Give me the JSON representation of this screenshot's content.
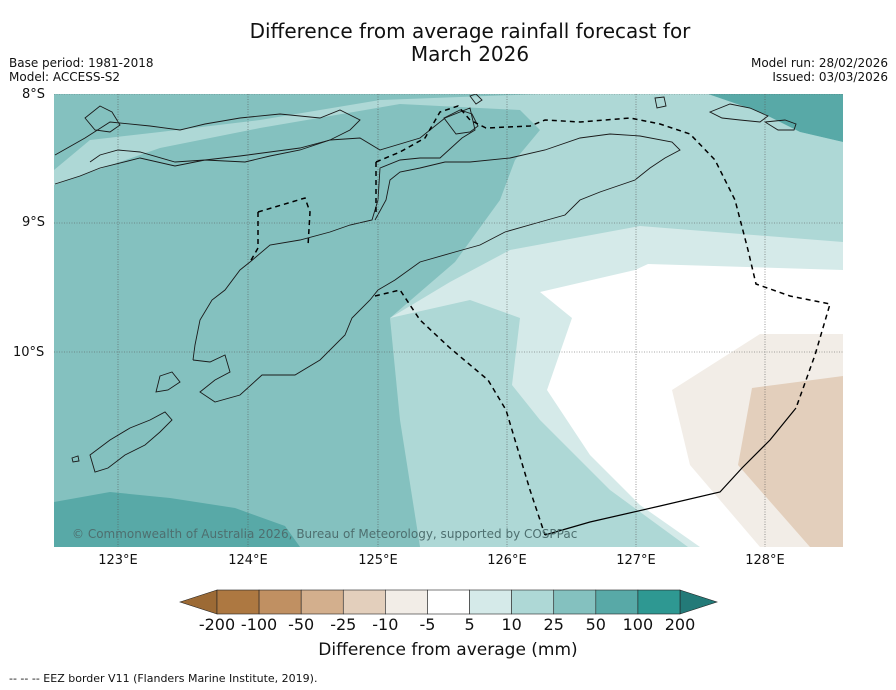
{
  "title_line1": "Difference from average rainfall forecast for",
  "title_line2": "March 2026",
  "base_period": "Base period: 1981-2018",
  "model": "Model: ACCESS-S2",
  "model_run": "Model run: 28/02/2026",
  "issued": "Issued: 03/03/2026",
  "lat_labels": [
    "8°S",
    "9°S",
    "10°S"
  ],
  "lon_labels": [
    "123°E",
    "124°E",
    "125°E",
    "126°E",
    "127°E",
    "128°E"
  ],
  "copyright": "© Commonwealth of Australia 2026, Bureau of Meteorology, supported by COSPPac",
  "colorbar": {
    "tick_labels": [
      "-200",
      "-100",
      "-50",
      "-25",
      "-10",
      "-5",
      "5",
      "10",
      "25",
      "50",
      "100",
      "200"
    ],
    "colors": [
      "#9c6a35",
      "#ad7841",
      "#c09062",
      "#d3af8d",
      "#e3cfbc",
      "#f2ede7",
      "#ffffff",
      "#d5eae9",
      "#aed8d6",
      "#84c1bf",
      "#58a9a7",
      "#2e9892",
      "#237a78"
    ],
    "label": "Difference from average (mm)"
  },
  "footnote": "--  --  -- EEZ border V11 (Flanders Marine Institute, 2019)."
}
